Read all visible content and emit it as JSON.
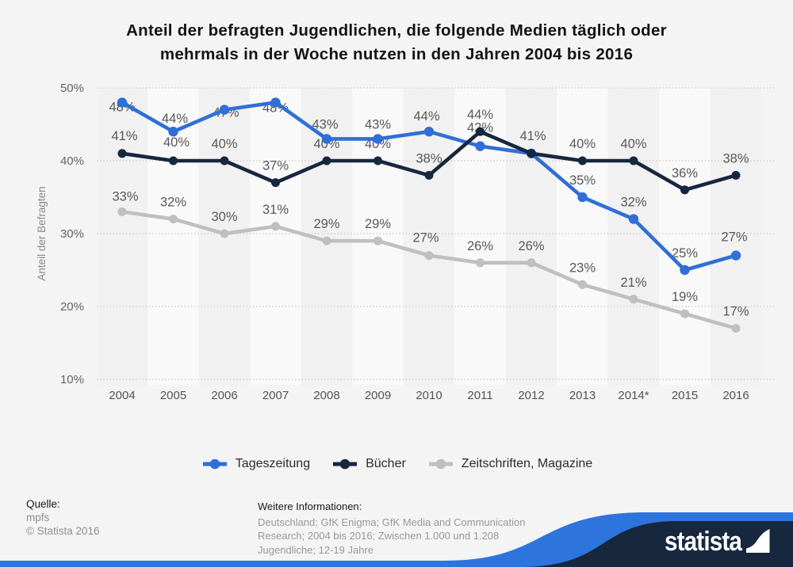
{
  "title": {
    "line1": "Anteil der befragten Jugendlichen, die folgende Medien täglich oder",
    "line2": "mehrmals in der Woche nutzen in den Jahren 2004 bis 2016"
  },
  "chart_data": {
    "type": "line",
    "x": [
      "2004",
      "2005",
      "2006",
      "2007",
      "2008",
      "2009",
      "2010",
      "2011",
      "2012",
      "2013",
      "2014*",
      "2015",
      "2016"
    ],
    "series": [
      {
        "name": "Tageszeitung",
        "color": "#2f6fd6",
        "values": [
          48,
          44,
          47,
          48,
          43,
          43,
          44,
          42,
          41,
          35,
          32,
          25,
          27
        ]
      },
      {
        "name": "Bücher",
        "color": "#16273e",
        "values": [
          41,
          40,
          40,
          37,
          40,
          40,
          38,
          44,
          41,
          40,
          40,
          36,
          38
        ]
      },
      {
        "name": "Zeitschriften, Magazine",
        "color": "#bfbfbf",
        "values": [
          33,
          32,
          30,
          31,
          29,
          29,
          27,
          26,
          26,
          23,
          21,
          19,
          17
        ]
      }
    ],
    "ylabel": "Anteil der Befragten",
    "yticks": [
      "50%",
      "40%",
      "30%",
      "20%",
      "10%"
    ],
    "ylim": [
      10,
      50
    ],
    "grid": "horizontal-dotted",
    "legend_position": "bottom",
    "point_label_suffix": "%"
  },
  "footer": {
    "source_label": "Quelle:",
    "source": "mpfs",
    "copyright": "© Statista 2016",
    "info_label": "Weitere Informationen:",
    "info_lines": [
      "Deutschland; GfK Enigma; GfK Media and Communication",
      "Research; 2004 bis 2016; Zwischen 1.000 und 1.208",
      "Jugendliche; 12-19 Jahre"
    ]
  },
  "branding": {
    "logo_text": "statista",
    "navy": "#16273e",
    "blue": "#2e74dd"
  }
}
